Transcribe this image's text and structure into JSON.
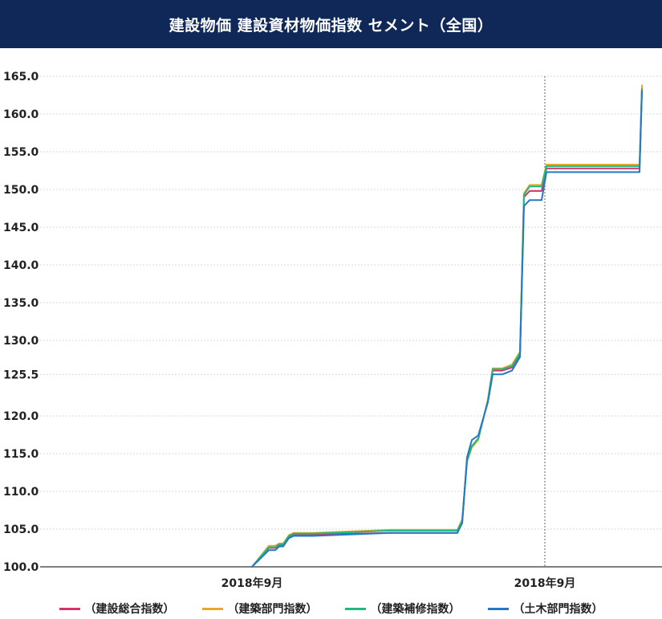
{
  "header": {
    "title": "建設物価 建設資材物価指数 セメント（全国）"
  },
  "colors": {
    "title_bg": "#0f2857",
    "grid": "#d9d9d9",
    "axis": "#333333",
    "marker_line": "#666666"
  },
  "chart_data": {
    "type": "line",
    "title": "建設物価 建設資材物価指数 セメント（全国）",
    "xlabel": "",
    "ylabel": "",
    "ylim": [
      100.0,
      165.0
    ],
    "y_ticks": [
      "100.0",
      "105.0",
      "110.0",
      "115.0",
      "120.0",
      "125.5",
      "130.0",
      "135.0",
      "140.0",
      "145.0",
      "150.0",
      "155.0",
      "160.0",
      "165.0"
    ],
    "x_tick_labels": [
      "2018年9月",
      "2018年9月"
    ],
    "grid": true,
    "legend_position": "bottom",
    "x": [
      0,
      1,
      2,
      3,
      4,
      5,
      6,
      7,
      8,
      9,
      10,
      11,
      12,
      13,
      14,
      15,
      16,
      17,
      18,
      19,
      20,
      21,
      22,
      23,
      24,
      25,
      26,
      27,
      28,
      29,
      30,
      31,
      32,
      33
    ],
    "series": [
      {
        "name": "（建設総合指数）",
        "color": "#d6336c",
        "values": [
          100.0,
          102.5,
          102.5,
          102.9,
          102.9,
          104.0,
          104.3,
          104.3,
          104.3,
          104.3,
          104.5,
          104.5,
          104.5,
          104.5,
          106.0,
          114.0,
          116.0,
          117.0,
          122.0,
          126.0,
          126.0,
          126.4,
          128.0,
          149.0,
          149.8,
          149.8,
          149.8,
          152.8,
          152.8,
          152.8,
          152.8,
          152.8,
          152.8,
          163.5
        ]
      },
      {
        "name": "（建築部門指数）",
        "color": "#e8a92a",
        "values": [
          100.0,
          102.8,
          102.8,
          103.1,
          103.1,
          104.2,
          104.5,
          104.5,
          104.5,
          104.5,
          104.9,
          104.9,
          104.9,
          104.9,
          106.3,
          114.0,
          115.8,
          116.8,
          122.2,
          126.3,
          126.3,
          126.8,
          128.5,
          149.5,
          150.6,
          150.6,
          150.6,
          153.3,
          153.3,
          153.3,
          153.3,
          153.3,
          153.3,
          163.8
        ]
      },
      {
        "name": "（建築補修指数）",
        "color": "#1ebc7c",
        "values": [
          100.0,
          102.6,
          102.6,
          103.0,
          103.0,
          104.1,
          104.4,
          104.4,
          104.4,
          104.4,
          104.8,
          104.8,
          104.8,
          104.8,
          106.1,
          114.0,
          116.0,
          117.0,
          122.0,
          126.2,
          126.2,
          126.6,
          128.3,
          149.3,
          150.4,
          150.4,
          150.4,
          153.1,
          153.1,
          153.1,
          153.1,
          153.1,
          153.1,
          163.3
        ]
      },
      {
        "name": "（土木部門指数）",
        "color": "#2378c8",
        "values": [
          100.0,
          102.2,
          102.2,
          102.7,
          102.7,
          103.8,
          104.1,
          104.1,
          104.1,
          104.1,
          104.5,
          104.5,
          104.5,
          104.5,
          105.8,
          114.5,
          116.8,
          117.4,
          121.8,
          125.5,
          125.5,
          126.0,
          127.8,
          147.8,
          148.6,
          148.6,
          148.6,
          152.3,
          152.3,
          152.3,
          152.3,
          152.3,
          152.3,
          163.0
        ]
      }
    ]
  }
}
